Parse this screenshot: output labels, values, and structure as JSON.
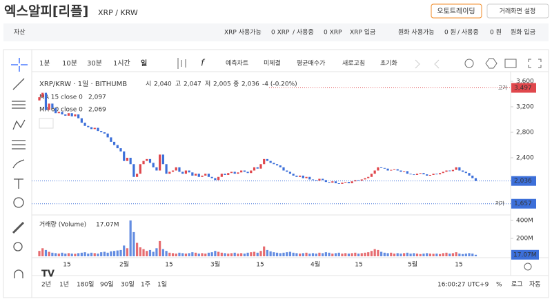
{
  "header": {
    "title": "엑스알피[리플]",
    "pair": "XRP / KRW",
    "buttons": [
      "오토트레이딩",
      "거래화면 설정"
    ]
  },
  "balance": {
    "label": "자산",
    "xrp_available": "XRP 사용가능",
    "xrp_amount": "0 XRP",
    "xrp_in_use_label": "/ 사용중",
    "xrp_in_use": "0 XRP",
    "xrp_deposit": "XRP 입금",
    "krw_available": "원화 사용가능",
    "krw_amount": "0 원",
    "krw_in_use_label": "/ 사용중",
    "krw_in_use": "0 원",
    "krw_deposit": "원화 입금"
  },
  "toolbar": {
    "intervals": [
      "1분",
      "10분",
      "30분",
      "1시간",
      "일"
    ],
    "actions": [
      "예측차트",
      "미체결",
      "평균매수가",
      "새로고침",
      "초기화"
    ]
  },
  "legend": {
    "symbol": "XRP/KRW · 1일 · BITHUMB",
    "open_label": "시",
    "open": "2,040",
    "high_label": "고",
    "high": "2,047",
    "low_label": "저",
    "low": "2,005",
    "close_label": "종",
    "close": "2,036",
    "change": "-4 (-0.20%)",
    "ma15": "MA 15 close 0",
    "ma15_value": "2,097",
    "ma60": "MA 60 close 0",
    "ma60_value": "2,069",
    "volume": "거래량 (Volume)",
    "volume_value": "17.07M"
  },
  "price_axis": {
    "ticks": [
      {
        "value": 3600,
        "label": "3,600"
      },
      {
        "value": 3200,
        "label": "3,200"
      },
      {
        "value": 2800,
        "label": "2,800"
      },
      {
        "value": 2400,
        "label": "2,400"
      }
    ],
    "high_tag": {
      "value": 3497,
      "label": "3,497",
      "note": "고가"
    },
    "last_tag": {
      "value": 2036,
      "label": "2,036"
    },
    "low_tag": {
      "value": 1657,
      "label": "1,657",
      "note": "저가"
    }
  },
  "volume_axis": {
    "ticks": [
      {
        "value": 400,
        "label": "400M"
      },
      {
        "value": 200,
        "label": "200M"
      }
    ],
    "last_tag": {
      "value": 17.07,
      "label": "17.07M"
    }
  },
  "time_axis": [
    "15",
    "2월",
    "15",
    "3월",
    "15",
    "4월",
    "15",
    "5월",
    "15"
  ],
  "ranges": [
    "2년",
    "1년",
    "180일",
    "90일",
    "30일",
    "1주",
    "1일"
  ],
  "footer": {
    "time": "16:00:27 UTC+9",
    "percent": "%",
    "log": "로그",
    "auto": "자동"
  },
  "candles": {
    "open": 3300,
    "close": [
      3350,
      3420,
      3150,
      3250,
      3180,
      3100,
      3120,
      3080,
      3060,
      3100,
      3050,
      3080,
      3020,
      2950,
      2900,
      2880,
      2850,
      2870,
      2820,
      2800,
      2780,
      2720,
      2650,
      2600,
      2550,
      2500,
      2350,
      2400,
      2300,
      2100,
      2150,
      2300,
      2350,
      2380,
      2320,
      2250,
      2200,
      2450,
      2300,
      2150,
      2180,
      2200,
      2250,
      2180,
      2150,
      2200,
      2170,
      2120,
      2150,
      2100,
      2120,
      2150,
      2100,
      2080,
      2050,
      2100,
      2150,
      2130,
      2160,
      2180,
      2150,
      2170,
      2200,
      2180,
      2160,
      2200,
      2250,
      2230,
      2300,
      2380,
      2350,
      2320,
      2300,
      2280,
      2250,
      2200,
      2180,
      2150,
      2120,
      2100,
      2120,
      2080,
      2100,
      2060,
      2050,
      2040,
      2070,
      2050,
      2020,
      2010,
      2030,
      2000,
      1990,
      2010,
      2020,
      2000,
      2030,
      2050,
      2040,
      2060,
      2080,
      2100,
      2150,
      2200,
      2250,
      2240,
      2230,
      2200,
      2210,
      2220,
      2200,
      2180,
      2190,
      2150,
      2140,
      2130,
      2150,
      2160,
      2140,
      2120,
      2130,
      2150,
      2140,
      2160,
      2180,
      2200,
      2190,
      2210,
      2250,
      2200,
      2180,
      2160,
      2120,
      2080,
      2036
    ],
    "volume": [
      60,
      90,
      70,
      50,
      40,
      35,
      30,
      40,
      30,
      35,
      30,
      28,
      35,
      40,
      45,
      30,
      40,
      35,
      30,
      45,
      50,
      40,
      55,
      60,
      65,
      70,
      120,
      90,
      400,
      270,
      150,
      100,
      80,
      60,
      70,
      50,
      90,
      170,
      80,
      60,
      40,
      35,
      30,
      40,
      35,
      30,
      35,
      45,
      40,
      30,
      35,
      30,
      40,
      45,
      60,
      50,
      40,
      35,
      30,
      35,
      40,
      30,
      35,
      30,
      40,
      45,
      50,
      40,
      60,
      110,
      70,
      55,
      45,
      40,
      35,
      40,
      45,
      50,
      40,
      35,
      30,
      35,
      40,
      30,
      35,
      30,
      40,
      35,
      45,
      40,
      30,
      35,
      40,
      30,
      35,
      30,
      35,
      40,
      30,
      35,
      40,
      45,
      60,
      80,
      70,
      50,
      40,
      35,
      40,
      30,
      35,
      30,
      35,
      40,
      30,
      35,
      30,
      25,
      30,
      35,
      30,
      28,
      30,
      25,
      35,
      40,
      30,
      35,
      45,
      30,
      25,
      30,
      35,
      30,
      17.07
    ]
  }
}
